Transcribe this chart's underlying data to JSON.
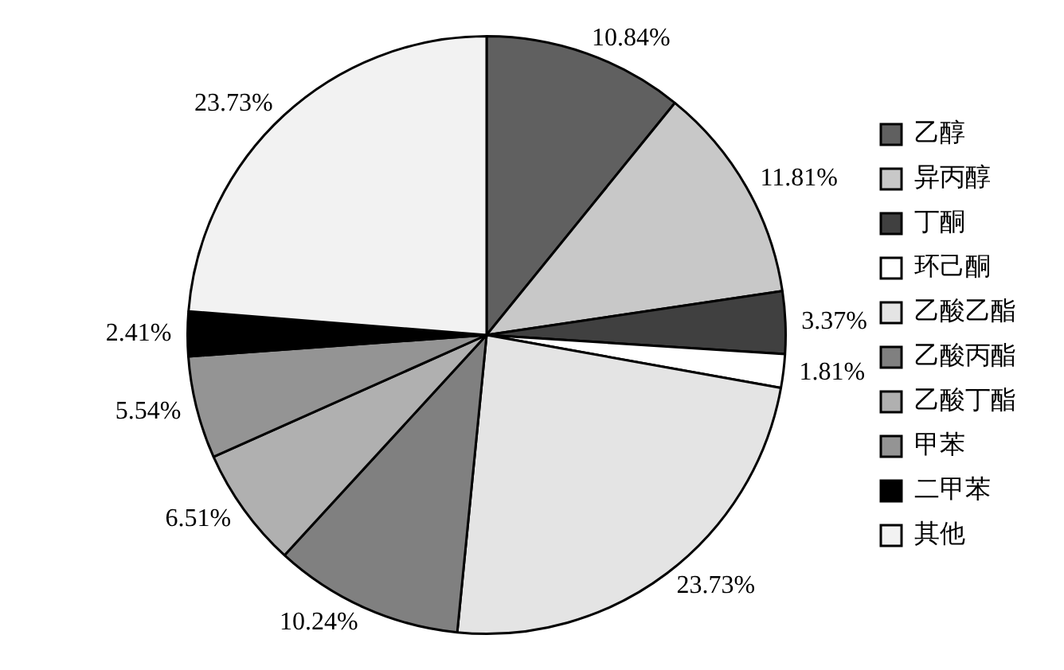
{
  "chart_data": {
    "type": "pie",
    "categories": [
      "乙醇",
      "异丙醇",
      "丁酮",
      "环己酮",
      "乙酸乙酯",
      "乙酸丙酯",
      "乙酸丁酯",
      "甲苯",
      "二甲苯",
      "其他"
    ],
    "values": [
      10.84,
      11.81,
      3.37,
      1.81,
      23.73,
      10.24,
      6.51,
      5.54,
      2.41,
      23.73
    ],
    "value_labels": [
      "10.84%",
      "11.81%",
      "3.37%",
      "1.81%",
      "23.73%",
      "10.24%",
      "6.51%",
      "5.54%",
      "2.41%",
      "23.73%"
    ],
    "colors": [
      "#606060",
      "#c8c8c8",
      "#404040",
      "#ffffff",
      "#e4e4e4",
      "#808080",
      "#b0b0b0",
      "#949494",
      "#000000",
      "#f2f2f2"
    ],
    "legend": "right"
  }
}
